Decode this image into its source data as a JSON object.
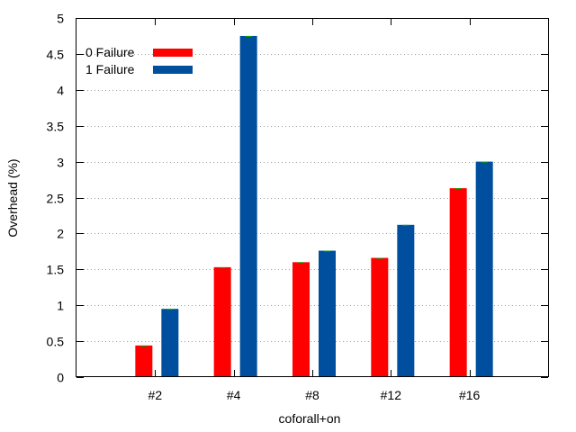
{
  "chart_data": {
    "type": "bar",
    "title": "",
    "xlabel": "coforall+on",
    "ylabel": "Overhead (%)",
    "categories": [
      "#2",
      "#4",
      "#8",
      "#12",
      "#16"
    ],
    "ylim": [
      0,
      5
    ],
    "yticks": [
      0,
      0.5,
      1,
      1.5,
      2,
      2.5,
      3,
      3.5,
      4,
      4.5,
      5
    ],
    "ytick_labels": [
      "0",
      "0.5",
      "1",
      "1.5",
      "2",
      "2.5",
      "3",
      "3.5",
      "4",
      "4.5",
      "5"
    ],
    "grid": "horizontal dotted",
    "legend_position": "top-left",
    "series": [
      {
        "name": "0 Failure",
        "color": "#ff0000",
        "values": [
          0.44,
          1.53,
          1.6,
          1.66,
          2.63
        ]
      },
      {
        "name": "1 Failure",
        "color": "#004f9e",
        "values": [
          0.95,
          4.75,
          1.76,
          2.12,
          3.0
        ]
      }
    ],
    "error_bar_color": "#00aa00"
  }
}
